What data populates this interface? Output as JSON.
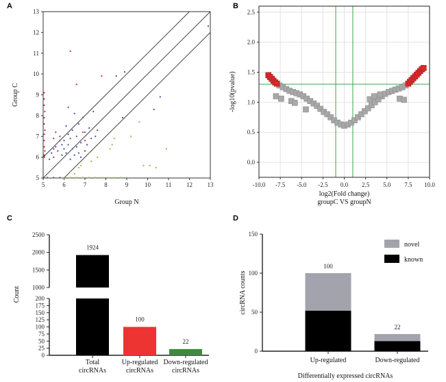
{
  "chart_data": [
    {
      "panel": "A",
      "type": "scatter",
      "xlabel": "Group N",
      "ylabel": "Group C",
      "xlim": [
        5,
        13
      ],
      "ylim": [
        5,
        13
      ],
      "xticks": [
        "5",
        "6",
        "7",
        "8",
        "9",
        "10",
        "11",
        "12",
        "13"
      ],
      "yticks": [
        "5",
        "6",
        "7",
        "8",
        "9",
        "10",
        "11",
        "12",
        "13"
      ],
      "reference_lines": [
        {
          "offset": 1
        },
        {
          "offset": 0
        },
        {
          "offset": -1
        }
      ],
      "colors": {
        "up": "#cc2a3a",
        "down": "#8cbf3f",
        "neutral": "#4b4ba8",
        "mixed": "#b8a14a"
      },
      "series": [
        {
          "group": "up",
          "points": [
            [
              5.05,
              9.1
            ],
            [
              5.05,
              8.8
            ],
            [
              5.05,
              8.5
            ],
            [
              5.08,
              8.2
            ],
            [
              5.05,
              7.9
            ],
            [
              5.05,
              7.6
            ],
            [
              5.08,
              7.3
            ],
            [
              5.05,
              7.1
            ],
            [
              5.05,
              6.8
            ],
            [
              5.05,
              6.5
            ],
            [
              5.08,
              6.3
            ],
            [
              5.05,
              6.1
            ],
            [
              5.06,
              6.0
            ],
            [
              5.6,
              7.2
            ],
            [
              5.8,
              6.8
            ],
            [
              6.3,
              11.1
            ],
            [
              6.6,
              9.5
            ],
            [
              7.0,
              6.8
            ],
            [
              7.8,
              9.9
            ],
            [
              5.5,
              6.4
            ],
            [
              6.9,
              7.2
            ]
          ]
        },
        {
          "group": "down",
          "points": [
            [
              6.0,
              5.02
            ],
            [
              6.3,
              5.02
            ],
            [
              6.6,
              5.02
            ],
            [
              6.9,
              5.02
            ],
            [
              7.2,
              5.02
            ],
            [
              7.5,
              5.02
            ],
            [
              7.8,
              5.02
            ],
            [
              8.1,
              5.02
            ],
            [
              8.4,
              5.02
            ],
            [
              8.7,
              5.02
            ],
            [
              6.8,
              5.6
            ],
            [
              7.3,
              5.8
            ],
            [
              7.6,
              6.0
            ],
            [
              8.2,
              6.4
            ],
            [
              8.4,
              6.9
            ],
            [
              9.8,
              5.6
            ],
            [
              10.4,
              5.5
            ],
            [
              10.9,
              6.4
            ]
          ]
        },
        {
          "group": "neutral",
          "points": [
            [
              5.3,
              5.9
            ],
            [
              5.4,
              6.2
            ],
            [
              5.5,
              6.0
            ],
            [
              5.6,
              6.5
            ],
            [
              5.7,
              6.3
            ],
            [
              5.8,
              7.0
            ],
            [
              5.9,
              6.1
            ],
            [
              6.0,
              6.8
            ],
            [
              6.0,
              6.4
            ],
            [
              6.1,
              7.5
            ],
            [
              6.1,
              6.2
            ],
            [
              6.2,
              7.1
            ],
            [
              6.2,
              6.6
            ],
            [
              6.3,
              5.9
            ],
            [
              6.3,
              6.9
            ],
            [
              6.4,
              7.3
            ],
            [
              6.4,
              6.4
            ],
            [
              6.5,
              8.1
            ],
            [
              6.5,
              6.1
            ],
            [
              6.6,
              7.0
            ],
            [
              6.6,
              6.5
            ],
            [
              6.7,
              7.6
            ],
            [
              6.7,
              6.2
            ],
            [
              6.8,
              6.7
            ],
            [
              6.9,
              7.9
            ],
            [
              7.0,
              6.3
            ],
            [
              7.0,
              7.2
            ],
            [
              7.1,
              6.6
            ],
            [
              7.2,
              7.4
            ],
            [
              7.3,
              6.9
            ],
            [
              7.4,
              8.2
            ],
            [
              7.5,
              7.0
            ],
            [
              5.5,
              6.9
            ],
            [
              5.9,
              6.6
            ],
            [
              6.2,
              8.4
            ],
            [
              6.8,
              6.0
            ],
            [
              7.6,
              7.3
            ],
            [
              8.9,
              10.1
            ],
            [
              8.5,
              9.9
            ],
            [
              10.6,
              8.9
            ],
            [
              12.9,
              12.3
            ],
            [
              10.3,
              8.3
            ],
            [
              8.8,
              7.9
            ],
            [
              5.2,
              5.02
            ],
            [
              5.5,
              5.02
            ],
            [
              5.8,
              5.02
            ]
          ]
        },
        {
          "group": "mixed",
          "points": [
            [
              6.3,
              5.3
            ],
            [
              6.7,
              5.5
            ],
            [
              7.2,
              6.2
            ],
            [
              8.3,
              6.6
            ],
            [
              9.2,
              7.0
            ],
            [
              9.6,
              7.7
            ],
            [
              10.1,
              5.6
            ],
            [
              6.5,
              5.2
            ]
          ]
        }
      ]
    },
    {
      "panel": "B",
      "type": "scatter",
      "xlabel": "log2(Fold change)",
      "subtitle": "groupC VS groupN",
      "ylabel": "-log10(pvalue)",
      "xlim": [
        -10,
        10
      ],
      "ylim": [
        -0.25,
        2.6
      ],
      "xticks": [
        "-10.0",
        "-7.5",
        "-5.0",
        "-2.5",
        "0.0",
        "2.5",
        "5.0",
        "7.5",
        "10.0"
      ],
      "yticks": [
        "0.0",
        "0.5",
        "1.0",
        "1.5",
        "2.0",
        "2.5"
      ],
      "thresholds": {
        "pvalue_line": 1.3,
        "fc_lines": [
          -1,
          1
        ]
      },
      "grid": true,
      "colors": {
        "significant": "#d92b2b",
        "other": "#a8a8a8",
        "threshold": "#33aa44"
      },
      "significant_points": [
        [
          -8.9,
          1.45
        ],
        [
          -8.7,
          1.42
        ],
        [
          -8.5,
          1.39
        ],
        [
          -8.3,
          1.36
        ],
        [
          -8.1,
          1.33
        ],
        [
          -7.9,
          1.31
        ],
        [
          7.5,
          1.31
        ],
        [
          7.7,
          1.34
        ],
        [
          7.9,
          1.37
        ],
        [
          8.1,
          1.4
        ],
        [
          8.3,
          1.43
        ],
        [
          8.5,
          1.46
        ],
        [
          8.7,
          1.49
        ],
        [
          8.9,
          1.52
        ],
        [
          9.1,
          1.55
        ],
        [
          9.3,
          1.57
        ]
      ],
      "other_points": [
        [
          -7.6,
          1.28
        ],
        [
          -7.2,
          1.25
        ],
        [
          -6.8,
          1.22
        ],
        [
          -6.4,
          1.19
        ],
        [
          -6.0,
          1.17
        ],
        [
          -5.6,
          1.15
        ],
        [
          -5.2,
          1.13
        ],
        [
          -4.8,
          1.1
        ],
        [
          -4.4,
          1.06
        ],
        [
          -4.0,
          1.02
        ],
        [
          -3.6,
          0.98
        ],
        [
          -3.2,
          0.94
        ],
        [
          -2.8,
          0.89
        ],
        [
          -2.4,
          0.84
        ],
        [
          -2.0,
          0.8
        ],
        [
          -1.6,
          0.75
        ],
        [
          -1.2,
          0.7
        ],
        [
          -0.8,
          0.66
        ],
        [
          -0.4,
          0.63
        ],
        [
          0.0,
          0.61
        ],
        [
          0.4,
          0.63
        ],
        [
          0.8,
          0.66
        ],
        [
          1.2,
          0.7
        ],
        [
          1.6,
          0.75
        ],
        [
          2.0,
          0.8
        ],
        [
          2.4,
          0.85
        ],
        [
          2.8,
          0.9
        ],
        [
          3.2,
          0.95
        ],
        [
          3.6,
          1.0
        ],
        [
          4.0,
          1.05
        ],
        [
          4.4,
          1.1
        ],
        [
          4.8,
          1.14
        ],
        [
          5.2,
          1.17
        ],
        [
          5.6,
          1.19
        ],
        [
          6.0,
          1.21
        ],
        [
          6.4,
          1.23
        ],
        [
          6.8,
          1.25
        ],
        [
          7.2,
          1.28
        ],
        [
          -6.2,
          1.02
        ],
        [
          -5.8,
          0.99
        ],
        [
          -4.5,
          0.88
        ],
        [
          -8.0,
          1.1
        ],
        [
          -7.4,
          1.06
        ],
        [
          3.0,
          1.05
        ],
        [
          3.5,
          1.1
        ],
        [
          4.2,
          1.13
        ],
        [
          6.5,
          1.06
        ],
        [
          7.0,
          1.04
        ]
      ]
    },
    {
      "panel": "C",
      "type": "bar",
      "ylabel": "Count",
      "categories": [
        "Total circRNAs",
        "Up-regulated circRNAs",
        "Down-regulated circRNAs"
      ],
      "category_lines": [
        [
          "Total",
          "circRNAs"
        ],
        [
          "Up-regulated",
          "circRNAs"
        ],
        [
          "Down-regulated",
          "circRNAs"
        ]
      ],
      "values": [
        1924,
        100,
        22
      ],
      "value_labels": [
        "1924",
        "100",
        "22"
      ],
      "colors": [
        "#000000",
        "#ee3333",
        "#3f8a3f"
      ],
      "broken_axis": {
        "lower": [
          0,
          200
        ],
        "upper": [
          1000,
          2500
        ]
      },
      "yticks_lower": [
        "0",
        "25",
        "50",
        "75",
        "100",
        "125",
        "150",
        "175",
        "200"
      ],
      "yticks_upper": [
        "1000",
        "1500",
        "2000",
        "2500"
      ]
    },
    {
      "panel": "D",
      "type": "bar",
      "stacked": true,
      "xlabel": "Differentially expressed circRNAs",
      "ylabel": "circRNA counts",
      "categories": [
        "Up-regulated",
        "Down-regulated"
      ],
      "ylim": [
        0,
        150
      ],
      "yticks": [
        "0",
        "50",
        "100",
        "150"
      ],
      "series": [
        {
          "name": "known",
          "color": "#000000",
          "values": [
            52,
            13
          ]
        },
        {
          "name": "novel",
          "color": "#a3a3ad",
          "values": [
            48,
            9
          ]
        }
      ],
      "totals": [
        "100",
        "22"
      ],
      "legend": [
        "novel",
        "known"
      ],
      "legend_position": "top-right"
    }
  ],
  "panel_letters": [
    "A",
    "B",
    "C",
    "D"
  ]
}
